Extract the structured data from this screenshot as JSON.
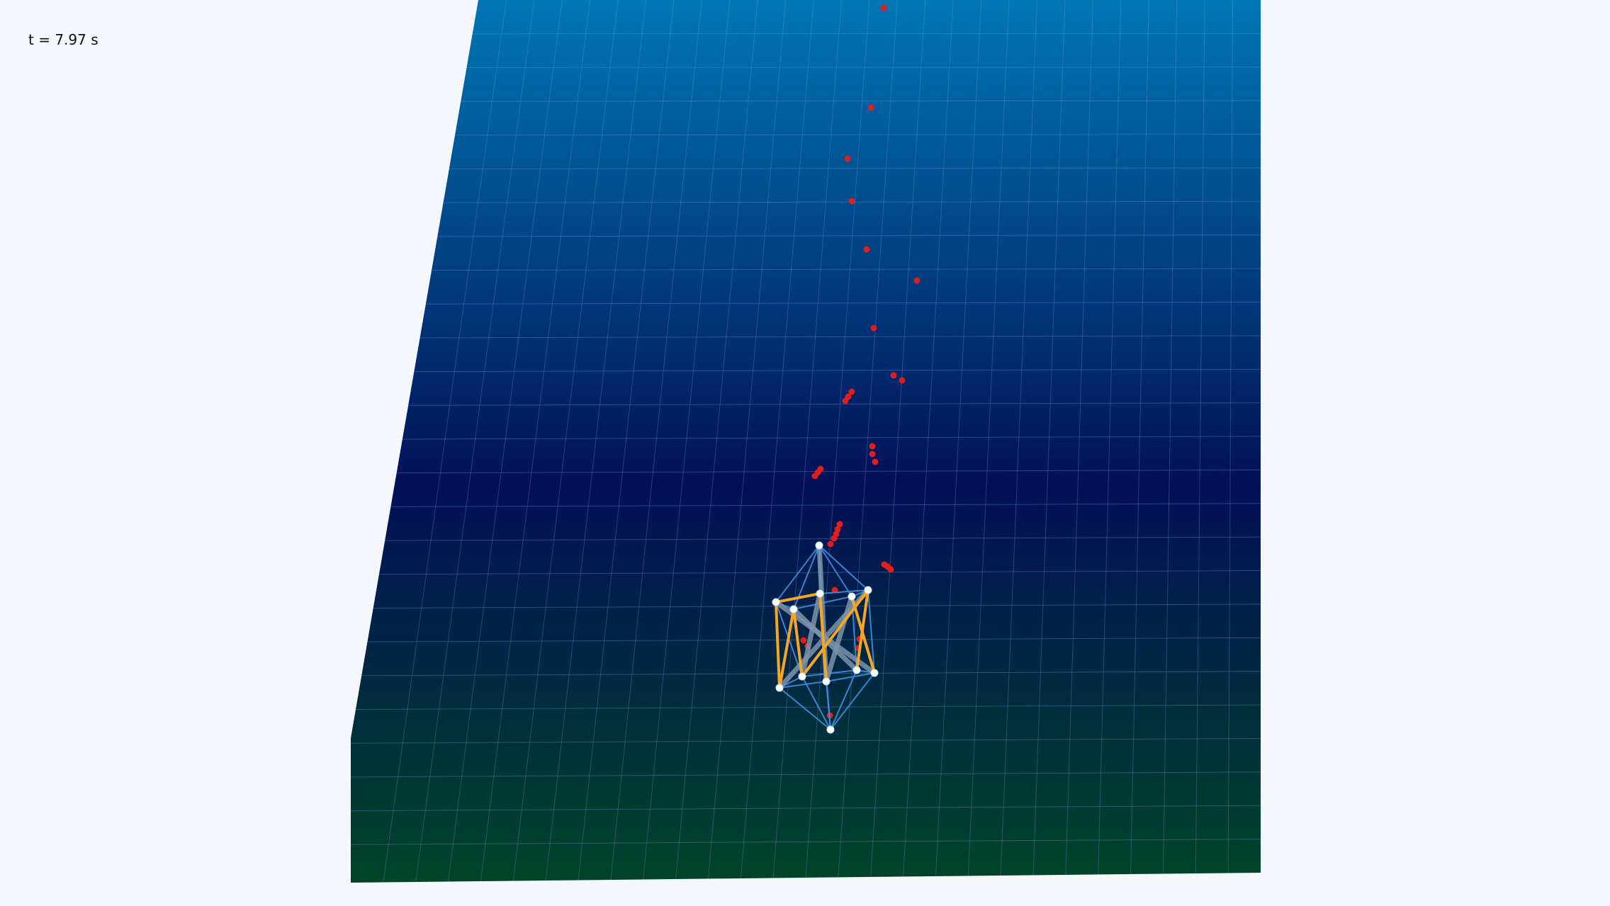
{
  "hud": {
    "time_label": "t = 7.97 s"
  },
  "scene": {
    "background_color": "#f4f7fc",
    "floor": {
      "gradient_colors": [
        "#0077b3",
        "#021058",
        "#004428"
      ],
      "grid_line_color": "#6fa3d9"
    },
    "structure": {
      "cable_color": "#3d8fe0",
      "strut_orange_color": "#f5a623",
      "strut_gray_color": "#7b93aa",
      "node_color": "#ffffff"
    },
    "trail": {
      "color": "#e01e1e"
    }
  }
}
